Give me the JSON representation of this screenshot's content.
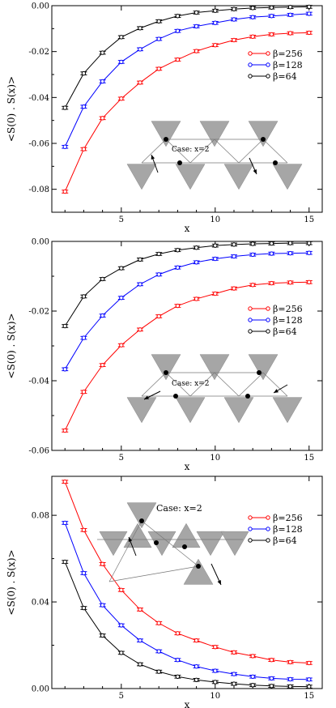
{
  "chart_data": [
    {
      "type": "line",
      "xlabel": "x",
      "ylabel": "<S(0) . S(x)>",
      "xlim": [
        1.3,
        15.7
      ],
      "ylim": [
        -0.09,
        0.0
      ],
      "xticks": [
        5,
        10,
        15
      ],
      "xtick_labels": [
        "5",
        "10",
        "15"
      ],
      "yticks": [
        -0.08,
        -0.06,
        -0.04,
        -0.02,
        0.0
      ],
      "ytick_labels": [
        "-0.08",
        "-0.06",
        "-0.04",
        "-0.02",
        "0.00"
      ],
      "legend_position": "right",
      "inset_label": "Case: x=2",
      "x": [
        2,
        3,
        4,
        5,
        6,
        7,
        8,
        9,
        10,
        11,
        12,
        13,
        14,
        15
      ],
      "series": [
        {
          "name": "β=256",
          "color": "#ff0000",
          "values": [
            -0.081,
            -0.0625,
            -0.049,
            -0.0405,
            -0.0335,
            -0.0275,
            -0.0235,
            -0.0198,
            -0.0172,
            -0.015,
            -0.0135,
            -0.0125,
            -0.012,
            -0.0118
          ]
        },
        {
          "name": "β=128",
          "color": "#0000ff",
          "values": [
            -0.0615,
            -0.044,
            -0.033,
            -0.0245,
            -0.019,
            -0.0145,
            -0.011,
            -0.009,
            -0.0075,
            -0.006,
            -0.005,
            -0.0045,
            -0.004,
            -0.0035
          ]
        },
        {
          "name": "β=64",
          "color": "#000000",
          "values": [
            -0.0445,
            -0.0295,
            -0.0205,
            -0.0137,
            -0.0098,
            -0.0068,
            -0.0045,
            -0.003,
            -0.0022,
            -0.0015,
            -0.001,
            -0.0008,
            -0.0006,
            -0.0005
          ]
        }
      ]
    },
    {
      "type": "line",
      "xlabel": "x",
      "ylabel": "<S(0) . S(x)>",
      "xlim": [
        1.3,
        15.7
      ],
      "ylim": [
        -0.06,
        0.0
      ],
      "xticks": [
        5,
        10,
        15
      ],
      "xtick_labels": [
        "5",
        "10",
        "15"
      ],
      "yticks": [
        -0.06,
        -0.04,
        -0.02,
        0.0
      ],
      "ytick_labels": [
        "-0.06",
        "-0.04",
        "-0.02",
        "0.00"
      ],
      "legend_position": "right",
      "inset_label": "Case: x=2",
      "x": [
        2,
        3,
        4,
        5,
        6,
        7,
        8,
        9,
        10,
        11,
        12,
        13,
        14,
        15
      ],
      "series": [
        {
          "name": "β=256",
          "color": "#ff0000",
          "values": [
            -0.0543,
            -0.0432,
            -0.0355,
            -0.0298,
            -0.0253,
            -0.0215,
            -0.0185,
            -0.0165,
            -0.015,
            -0.0135,
            -0.0125,
            -0.012,
            -0.0118,
            -0.0117
          ]
        },
        {
          "name": "β=128",
          "color": "#0000ff",
          "values": [
            -0.0367,
            -0.0277,
            -0.0213,
            -0.0162,
            -0.0123,
            -0.0095,
            -0.0075,
            -0.006,
            -0.005,
            -0.0043,
            -0.0038,
            -0.0035,
            -0.0034,
            -0.0033
          ]
        },
        {
          "name": "β=64",
          "color": "#000000",
          "values": [
            -0.0243,
            -0.0158,
            -0.0108,
            -0.0077,
            -0.0052,
            -0.0036,
            -0.0025,
            -0.0018,
            -0.0012,
            -0.0009,
            -0.0007,
            -0.0006,
            -0.0005,
            -0.0005
          ]
        }
      ]
    },
    {
      "type": "line",
      "xlabel": "x",
      "ylabel": "<S(0) . S(x)>",
      "xlim": [
        1.3,
        15.7
      ],
      "ylim": [
        0.0,
        0.098
      ],
      "xticks": [
        5,
        10,
        15
      ],
      "xtick_labels": [
        "5",
        "10",
        "15"
      ],
      "yticks": [
        0.0,
        0.04,
        0.08
      ],
      "ytick_labels": [
        "0.00",
        "0.04",
        "0.08"
      ],
      "legend_position": "top-right",
      "inset_label": "Case: x=2",
      "x": [
        2,
        3,
        4,
        5,
        6,
        7,
        8,
        9,
        10,
        11,
        12,
        13,
        14,
        15
      ],
      "series": [
        {
          "name": "β=256",
          "color": "#ff0000",
          "values": [
            0.0955,
            0.0732,
            0.0575,
            0.0455,
            0.0365,
            0.0302,
            0.0255,
            0.0222,
            0.0192,
            0.0167,
            0.015,
            0.0132,
            0.0122,
            0.0118
          ]
        },
        {
          "name": "β=128",
          "color": "#0000ff",
          "values": [
            0.0765,
            0.0533,
            0.0385,
            0.0292,
            0.0222,
            0.0172,
            0.0132,
            0.0102,
            0.0082,
            0.0067,
            0.0055,
            0.0047,
            0.0043,
            0.0042
          ]
        },
        {
          "name": "β=64",
          "color": "#000000",
          "values": [
            0.0585,
            0.0372,
            0.0245,
            0.0165,
            0.0112,
            0.0078,
            0.0055,
            0.004,
            0.003,
            0.0022,
            0.0016,
            0.0012,
            0.001,
            0.0009
          ]
        }
      ]
    }
  ]
}
